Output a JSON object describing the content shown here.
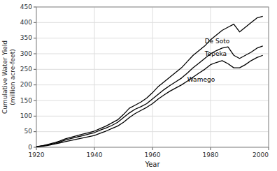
{
  "chart_data": {
    "type": "line",
    "title": "",
    "xlabel": "Year",
    "ylabel": "Cumulative Water Yield\n(million acre-feet)",
    "xlim": [
      1920,
      2000
    ],
    "ylim": [
      0,
      450
    ],
    "xticks": [
      1920,
      1940,
      1960,
      1980,
      2000
    ],
    "yticks": [
      0,
      50,
      100,
      150,
      200,
      250,
      300,
      350,
      400,
      450
    ],
    "grid": true,
    "x": [
      1920,
      1922,
      1924,
      1926,
      1928,
      1930,
      1932,
      1934,
      1936,
      1938,
      1940,
      1942,
      1944,
      1946,
      1948,
      1950,
      1952,
      1954,
      1956,
      1958,
      1960,
      1962,
      1964,
      1966,
      1968,
      1970,
      1972,
      1974,
      1976,
      1978,
      1980,
      1982,
      1984,
      1986,
      1988,
      1990,
      1992,
      1994,
      1996,
      1998
    ],
    "series": [
      {
        "name": "De Soto",
        "color": "#000000",
        "values": [
          2,
          5,
          9,
          14,
          20,
          27,
          32,
          37,
          42,
          47,
          52,
          60,
          68,
          78,
          88,
          105,
          125,
          135,
          145,
          158,
          175,
          195,
          210,
          225,
          240,
          255,
          275,
          295,
          310,
          325,
          345,
          360,
          375,
          385,
          395,
          370,
          385,
          400,
          415,
          420
        ]
      },
      {
        "name": "Topeka",
        "color": "#000000",
        "values": [
          2,
          4,
          8,
          12,
          17,
          23,
          28,
          33,
          37,
          42,
          47,
          55,
          62,
          70,
          80,
          95,
          110,
          122,
          130,
          140,
          155,
          170,
          185,
          198,
          210,
          222,
          238,
          255,
          270,
          285,
          300,
          310,
          318,
          322,
          295,
          285,
          295,
          305,
          318,
          325
        ]
      },
      {
        "name": "Wamego",
        "color": "#000000",
        "values": [
          1,
          3,
          6,
          10,
          14,
          18,
          22,
          26,
          30,
          34,
          38,
          45,
          52,
          60,
          68,
          80,
          95,
          108,
          118,
          128,
          140,
          155,
          168,
          180,
          190,
          200,
          212,
          225,
          238,
          250,
          265,
          272,
          278,
          268,
          255,
          255,
          265,
          278,
          288,
          295
        ]
      }
    ],
    "annotations": [
      {
        "text": "De Soto",
        "x": 1978,
        "y": 340
      },
      {
        "text": "Topeka",
        "x": 1978,
        "y": 300
      },
      {
        "text": "Wamego",
        "x": 1972,
        "y": 215
      }
    ]
  }
}
